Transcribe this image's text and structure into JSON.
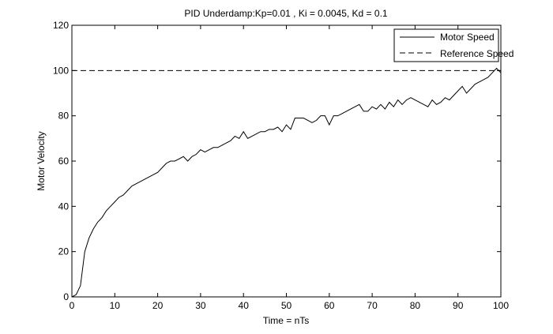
{
  "chart_data": {
    "type": "line",
    "title": "PID Underdamp:Kp=0.01 , Ki = 0.0045, Kd = 0.1",
    "xlabel": "Time = nTs",
    "ylabel": "Motor Velocity",
    "xlim": [
      0,
      100
    ],
    "ylim": [
      0,
      120
    ],
    "xticks": [
      0,
      10,
      20,
      30,
      40,
      50,
      60,
      70,
      80,
      90,
      100
    ],
    "yticks": [
      0,
      20,
      40,
      60,
      80,
      100,
      120
    ],
    "grid": false,
    "legend_position": "top-right",
    "series": [
      {
        "name": "Motor Speed",
        "style": "solid",
        "color": "#000000",
        "x": [
          0,
          1,
          2,
          3,
          4,
          5,
          6,
          7,
          8,
          9,
          10,
          11,
          12,
          13,
          14,
          15,
          16,
          17,
          18,
          19,
          20,
          21,
          22,
          23,
          24,
          25,
          26,
          27,
          28,
          29,
          30,
          31,
          32,
          33,
          34,
          35,
          36,
          37,
          38,
          39,
          40,
          41,
          42,
          43,
          44,
          45,
          46,
          47,
          48,
          49,
          50,
          51,
          52,
          53,
          54,
          55,
          56,
          57,
          58,
          59,
          60,
          61,
          62,
          63,
          64,
          65,
          66,
          67,
          68,
          69,
          70,
          71,
          72,
          73,
          74,
          75,
          76,
          77,
          78,
          79,
          80,
          81,
          82,
          83,
          84,
          85,
          86,
          87,
          88,
          89,
          90,
          91,
          92,
          93,
          94,
          95,
          96,
          97,
          98,
          99,
          100
        ],
        "y": [
          0,
          1,
          5,
          20,
          26,
          30,
          33,
          35,
          38,
          40,
          42,
          44,
          45,
          47,
          49,
          50,
          51,
          52,
          53,
          54,
          55,
          57,
          59,
          60,
          60,
          61,
          62,
          60,
          62,
          63,
          65,
          64,
          65,
          66,
          66,
          67,
          68,
          69,
          71,
          70,
          73,
          70,
          71,
          72,
          73,
          73,
          74,
          74,
          75,
          73,
          76,
          74,
          79,
          79,
          79,
          78,
          77,
          78,
          80,
          80,
          76,
          80,
          80,
          81,
          82,
          83,
          84,
          85,
          82,
          82,
          84,
          83,
          85,
          83,
          86,
          84,
          87,
          85,
          87,
          88,
          87,
          86,
          85,
          84,
          87,
          85,
          86,
          88,
          87,
          89,
          91,
          93,
          90,
          92,
          94,
          95,
          96,
          97,
          99,
          101,
          99
        ]
      },
      {
        "name": "Reference Speed",
        "style": "dashed",
        "color": "#000000",
        "x": [
          0,
          100
        ],
        "y": [
          100,
          100
        ]
      }
    ]
  }
}
